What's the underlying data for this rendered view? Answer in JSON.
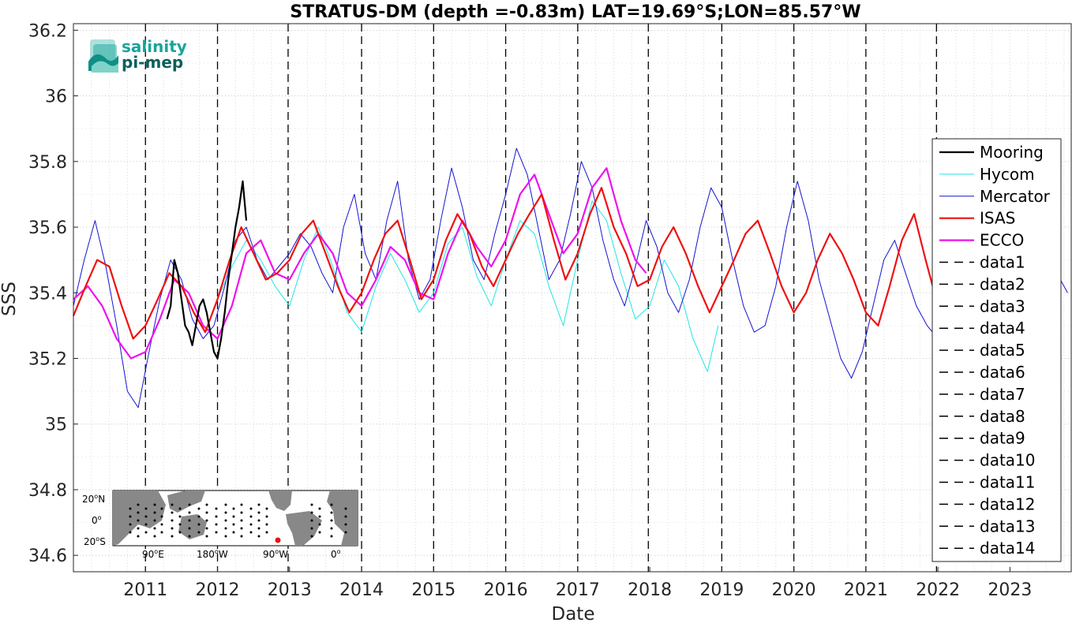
{
  "chart_data": {
    "type": "line",
    "title": "STRATUS-DM (depth =-0.83m) LAT=19.69°S;LON=85.57°W",
    "xlabel": "Date",
    "ylabel": "SSS",
    "xlim": [
      2010.0,
      2023.85
    ],
    "ylim": [
      34.55,
      36.22
    ],
    "grid": true,
    "legend_position": "right",
    "x_ticks": [
      2011,
      2012,
      2013,
      2014,
      2015,
      2016,
      2017,
      2018,
      2019,
      2020,
      2021,
      2022,
      2023
    ],
    "x_tick_labels": [
      "2011",
      "2012",
      "2013",
      "2014",
      "2015",
      "2016",
      "2017",
      "2018",
      "2019",
      "2020",
      "2021",
      "2022",
      "2023"
    ],
    "y_ticks": [
      34.6,
      34.8,
      35,
      35.2,
      35.4,
      35.6,
      35.8,
      36,
      36.2
    ],
    "y_tick_labels": [
      "34.6",
      "34.8",
      "35",
      "35.2",
      "35.4",
      "35.6",
      "35.8",
      "36",
      "36.2"
    ],
    "vlines": [
      2011.0,
      2012.0,
      2012.98,
      2014.0,
      2015.0,
      2016.0,
      2017.0,
      2017.98,
      2019.0,
      2020.0,
      2021.0,
      2021.98
    ],
    "series": [
      {
        "name": "Mooring",
        "color": "#000000",
        "width": 2.2,
        "x": [
          2011.3,
          2011.35,
          2011.4,
          2011.45,
          2011.5,
          2011.55,
          2011.6,
          2011.65,
          2011.7,
          2011.75,
          2011.8,
          2011.85,
          2011.9,
          2011.95,
          2012.0,
          2012.05,
          2012.1,
          2012.15,
          2012.2,
          2012.25,
          2012.3,
          2012.35,
          2012.4
        ],
        "y": [
          35.32,
          35.36,
          35.5,
          35.46,
          35.38,
          35.3,
          35.28,
          35.24,
          35.3,
          35.36,
          35.38,
          35.34,
          35.28,
          35.22,
          35.2,
          35.26,
          35.34,
          35.44,
          35.52,
          35.6,
          35.66,
          35.74,
          35.62
        ]
      },
      {
        "name": "Hycom",
        "color": "#22e5e5",
        "width": 1,
        "x": [
          2012.0,
          2012.2,
          2012.4,
          2012.6,
          2012.8,
          2013.0,
          2013.2,
          2013.4,
          2013.6,
          2013.8,
          2014.0,
          2014.2,
          2014.4,
          2014.6,
          2014.8,
          2015.0,
          2015.2,
          2015.4,
          2015.6,
          2015.8,
          2016.0,
          2016.2,
          2016.4,
          2016.6,
          2016.8,
          2017.0,
          2017.2,
          2017.4,
          2017.6,
          2017.8,
          2018.0,
          2018.2,
          2018.4,
          2018.6,
          2018.8,
          2018.95
        ],
        "y": [
          35.38,
          35.48,
          35.56,
          35.5,
          35.42,
          35.36,
          35.5,
          35.6,
          35.48,
          35.34,
          35.28,
          35.42,
          35.52,
          35.44,
          35.34,
          35.4,
          35.55,
          35.6,
          35.45,
          35.36,
          35.5,
          35.62,
          35.58,
          35.42,
          35.3,
          35.5,
          35.68,
          35.62,
          35.46,
          35.32,
          35.36,
          35.5,
          35.42,
          35.26,
          35.16,
          35.3
        ]
      },
      {
        "name": "Mercator",
        "color": "#1414d2",
        "width": 1,
        "x": [
          2010.0,
          2010.15,
          2010.3,
          2010.45,
          2010.6,
          2010.75,
          2010.9,
          2011.05,
          2011.2,
          2011.35,
          2011.5,
          2011.65,
          2011.8,
          2011.95,
          2012.1,
          2012.25,
          2012.4,
          2012.55,
          2012.7,
          2012.85,
          2013.0,
          2013.15,
          2013.3,
          2013.45,
          2013.6,
          2013.75,
          2013.9,
          2014.05,
          2014.2,
          2014.35,
          2014.5,
          2014.65,
          2014.8,
          2014.95,
          2015.1,
          2015.25,
          2015.4,
          2015.55,
          2015.7,
          2015.85,
          2016.0,
          2016.15,
          2016.3,
          2016.45,
          2016.6,
          2016.75,
          2016.9,
          2017.05,
          2017.2,
          2017.35,
          2017.5,
          2017.65,
          2017.8,
          2017.95,
          2018.1,
          2018.25,
          2018.4,
          2018.55,
          2018.7,
          2018.85,
          2019.0,
          2019.15,
          2019.3,
          2019.45,
          2019.6,
          2019.75,
          2019.9,
          2020.05,
          2020.2,
          2020.35,
          2020.5,
          2020.65,
          2020.8,
          2020.95,
          2021.1,
          2021.25,
          2021.4,
          2021.55,
          2021.7,
          2021.85,
          2022.0,
          2022.15,
          2022.3,
          2022.45,
          2022.6,
          2022.75,
          2022.9,
          2023.05,
          2023.2,
          2023.35,
          2023.5,
          2023.65,
          2023.8
        ],
        "y": [
          35.36,
          35.5,
          35.62,
          35.48,
          35.3,
          35.1,
          35.05,
          35.22,
          35.38,
          35.5,
          35.44,
          35.32,
          35.26,
          35.3,
          35.42,
          35.56,
          35.6,
          35.5,
          35.44,
          35.48,
          35.52,
          35.58,
          35.54,
          35.46,
          35.4,
          35.6,
          35.7,
          35.52,
          35.44,
          35.62,
          35.74,
          35.5,
          35.38,
          35.44,
          35.62,
          35.78,
          35.66,
          35.5,
          35.44,
          35.58,
          35.7,
          35.84,
          35.76,
          35.6,
          35.44,
          35.5,
          35.64,
          35.8,
          35.72,
          35.56,
          35.44,
          35.36,
          35.48,
          35.62,
          35.54,
          35.4,
          35.34,
          35.44,
          35.6,
          35.72,
          35.66,
          35.5,
          35.36,
          35.28,
          35.3,
          35.42,
          35.6,
          35.74,
          35.62,
          35.44,
          35.32,
          35.2,
          35.14,
          35.22,
          35.36,
          35.5,
          35.56,
          35.46,
          35.36,
          35.3,
          35.26,
          35.3,
          35.38,
          35.46,
          35.5,
          35.44,
          35.36,
          35.3,
          35.36,
          35.44,
          35.5,
          35.46,
          35.4
        ]
      },
      {
        "name": "ISAS",
        "color": "#ee1111",
        "width": 2.2,
        "x": [
          2010.0,
          2010.17,
          2010.33,
          2010.5,
          2010.67,
          2010.83,
          2011.0,
          2011.17,
          2011.33,
          2011.5,
          2011.67,
          2011.83,
          2012.0,
          2012.17,
          2012.33,
          2012.5,
          2012.67,
          2012.83,
          2013.0,
          2013.17,
          2013.33,
          2013.5,
          2013.67,
          2013.83,
          2014.0,
          2014.17,
          2014.33,
          2014.5,
          2014.67,
          2014.83,
          2015.0,
          2015.17,
          2015.33,
          2015.5,
          2015.67,
          2015.83,
          2016.0,
          2016.17,
          2016.33,
          2016.5,
          2016.67,
          2016.83,
          2017.0,
          2017.17,
          2017.33,
          2017.5,
          2017.67,
          2017.83,
          2018.0,
          2018.17,
          2018.33,
          2018.5,
          2018.67,
          2018.83,
          2019.0,
          2019.17,
          2019.33,
          2019.5,
          2019.67,
          2019.83,
          2020.0,
          2020.17,
          2020.33,
          2020.5,
          2020.67,
          2020.83,
          2021.0,
          2021.17,
          2021.33,
          2021.5,
          2021.67,
          2021.83,
          2022.0
        ],
        "y": [
          35.33,
          35.42,
          35.5,
          35.48,
          35.36,
          35.26,
          35.3,
          35.38,
          35.46,
          35.42,
          35.34,
          35.28,
          35.38,
          35.5,
          35.6,
          35.52,
          35.44,
          35.46,
          35.5,
          35.58,
          35.62,
          35.52,
          35.42,
          35.34,
          35.4,
          35.5,
          35.58,
          35.62,
          35.5,
          35.38,
          35.44,
          35.56,
          35.64,
          35.58,
          35.48,
          35.42,
          35.5,
          35.58,
          35.64,
          35.7,
          35.56,
          35.44,
          35.52,
          35.64,
          35.72,
          35.6,
          35.52,
          35.42,
          35.44,
          35.54,
          35.6,
          35.52,
          35.42,
          35.34,
          35.42,
          35.5,
          35.58,
          35.62,
          35.52,
          35.42,
          35.34,
          35.4,
          35.5,
          35.58,
          35.52,
          35.44,
          35.34,
          35.3,
          35.42,
          35.56,
          35.64,
          35.5,
          35.36
        ]
      },
      {
        "name": "ECCO",
        "color": "#ee11ee",
        "width": 2.2,
        "x": [
          2010.0,
          2010.2,
          2010.4,
          2010.6,
          2010.8,
          2011.0,
          2011.2,
          2011.4,
          2011.6,
          2011.8,
          2012.0,
          2012.2,
          2012.4,
          2012.6,
          2012.8,
          2013.0,
          2013.2,
          2013.4,
          2013.6,
          2013.8,
          2014.0,
          2014.2,
          2014.4,
          2014.6,
          2014.8,
          2015.0,
          2015.2,
          2015.4,
          2015.6,
          2015.8,
          2016.0,
          2016.2,
          2016.4,
          2016.6,
          2016.8,
          2017.0,
          2017.2,
          2017.4,
          2017.6,
          2017.8,
          2017.95
        ],
        "y": [
          35.38,
          35.42,
          35.36,
          35.26,
          35.2,
          35.22,
          35.32,
          35.44,
          35.4,
          35.3,
          35.26,
          35.36,
          35.52,
          35.56,
          35.46,
          35.44,
          35.52,
          35.58,
          35.52,
          35.4,
          35.36,
          35.44,
          35.54,
          35.5,
          35.4,
          35.38,
          35.52,
          35.62,
          35.54,
          35.48,
          35.56,
          35.7,
          35.76,
          35.64,
          35.52,
          35.58,
          35.72,
          35.78,
          35.62,
          35.5,
          35.46
        ]
      },
      {
        "name": "data1",
        "color": "#000000",
        "width": 1.5,
        "dash": true,
        "x": [],
        "y": []
      },
      {
        "name": "data2",
        "color": "#000000",
        "width": 1.5,
        "dash": true,
        "x": [],
        "y": []
      },
      {
        "name": "data3",
        "color": "#000000",
        "width": 1.5,
        "dash": true,
        "x": [],
        "y": []
      },
      {
        "name": "data4",
        "color": "#000000",
        "width": 1.5,
        "dash": true,
        "x": [],
        "y": []
      },
      {
        "name": "data5",
        "color": "#000000",
        "width": 1.5,
        "dash": true,
        "x": [],
        "y": []
      },
      {
        "name": "data6",
        "color": "#000000",
        "width": 1.5,
        "dash": true,
        "x": [],
        "y": []
      },
      {
        "name": "data7",
        "color": "#000000",
        "width": 1.5,
        "dash": true,
        "x": [],
        "y": []
      },
      {
        "name": "data8",
        "color": "#000000",
        "width": 1.5,
        "dash": true,
        "x": [],
        "y": []
      },
      {
        "name": "data9",
        "color": "#000000",
        "width": 1.5,
        "dash": true,
        "x": [],
        "y": []
      },
      {
        "name": "data10",
        "color": "#000000",
        "width": 1.5,
        "dash": true,
        "x": [],
        "y": []
      },
      {
        "name": "data11",
        "color": "#000000",
        "width": 1.5,
        "dash": true,
        "x": [],
        "y": []
      },
      {
        "name": "data12",
        "color": "#000000",
        "width": 1.5,
        "dash": true,
        "x": [],
        "y": []
      },
      {
        "name": "data13",
        "color": "#000000",
        "width": 1.5,
        "dash": true,
        "x": [],
        "y": []
      },
      {
        "name": "data14",
        "color": "#000000",
        "width": 1.5,
        "dash": true,
        "x": [],
        "y": []
      }
    ]
  },
  "logo": {
    "line1": "salinity",
    "line2": "pi-mep"
  },
  "inset_map": {
    "lat_labels": [
      "20",
      "0",
      "20"
    ],
    "lat_suffixes": [
      "N",
      "",
      "S"
    ],
    "lon_labels": [
      "90",
      "180",
      "90",
      "0"
    ],
    "lon_suffixes": [
      "E",
      "W",
      "W",
      ""
    ],
    "marker_color": "#ee1111"
  }
}
